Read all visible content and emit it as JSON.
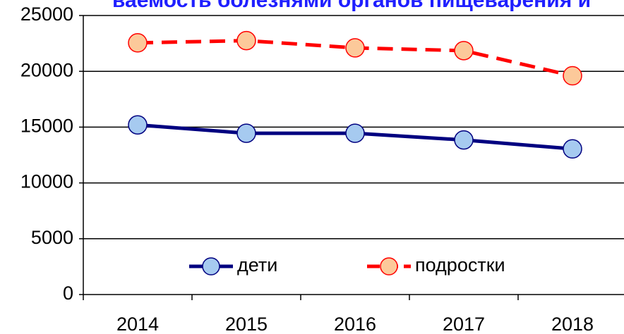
{
  "chart_data": {
    "type": "line",
    "title": "ваемость болезнями органов пищеварения и",
    "categories": [
      "2014",
      "2015",
      "2016",
      "2017",
      "2018"
    ],
    "series": [
      {
        "name": "дети",
        "color": "#000080",
        "marker_color": "#a6caf0",
        "dash": false,
        "values": [
          15200,
          14450,
          14450,
          13850,
          13050
        ]
      },
      {
        "name": "подростки",
        "color": "#ff0000",
        "marker_color": "#fcc99a",
        "dash": true,
        "values": [
          22550,
          22750,
          22100,
          21850,
          19600
        ]
      }
    ],
    "ylim": [
      0,
      25000
    ],
    "yticks": [
      0,
      5000,
      10000,
      15000,
      20000,
      25000
    ],
    "grid": true,
    "legend": "bottom"
  }
}
